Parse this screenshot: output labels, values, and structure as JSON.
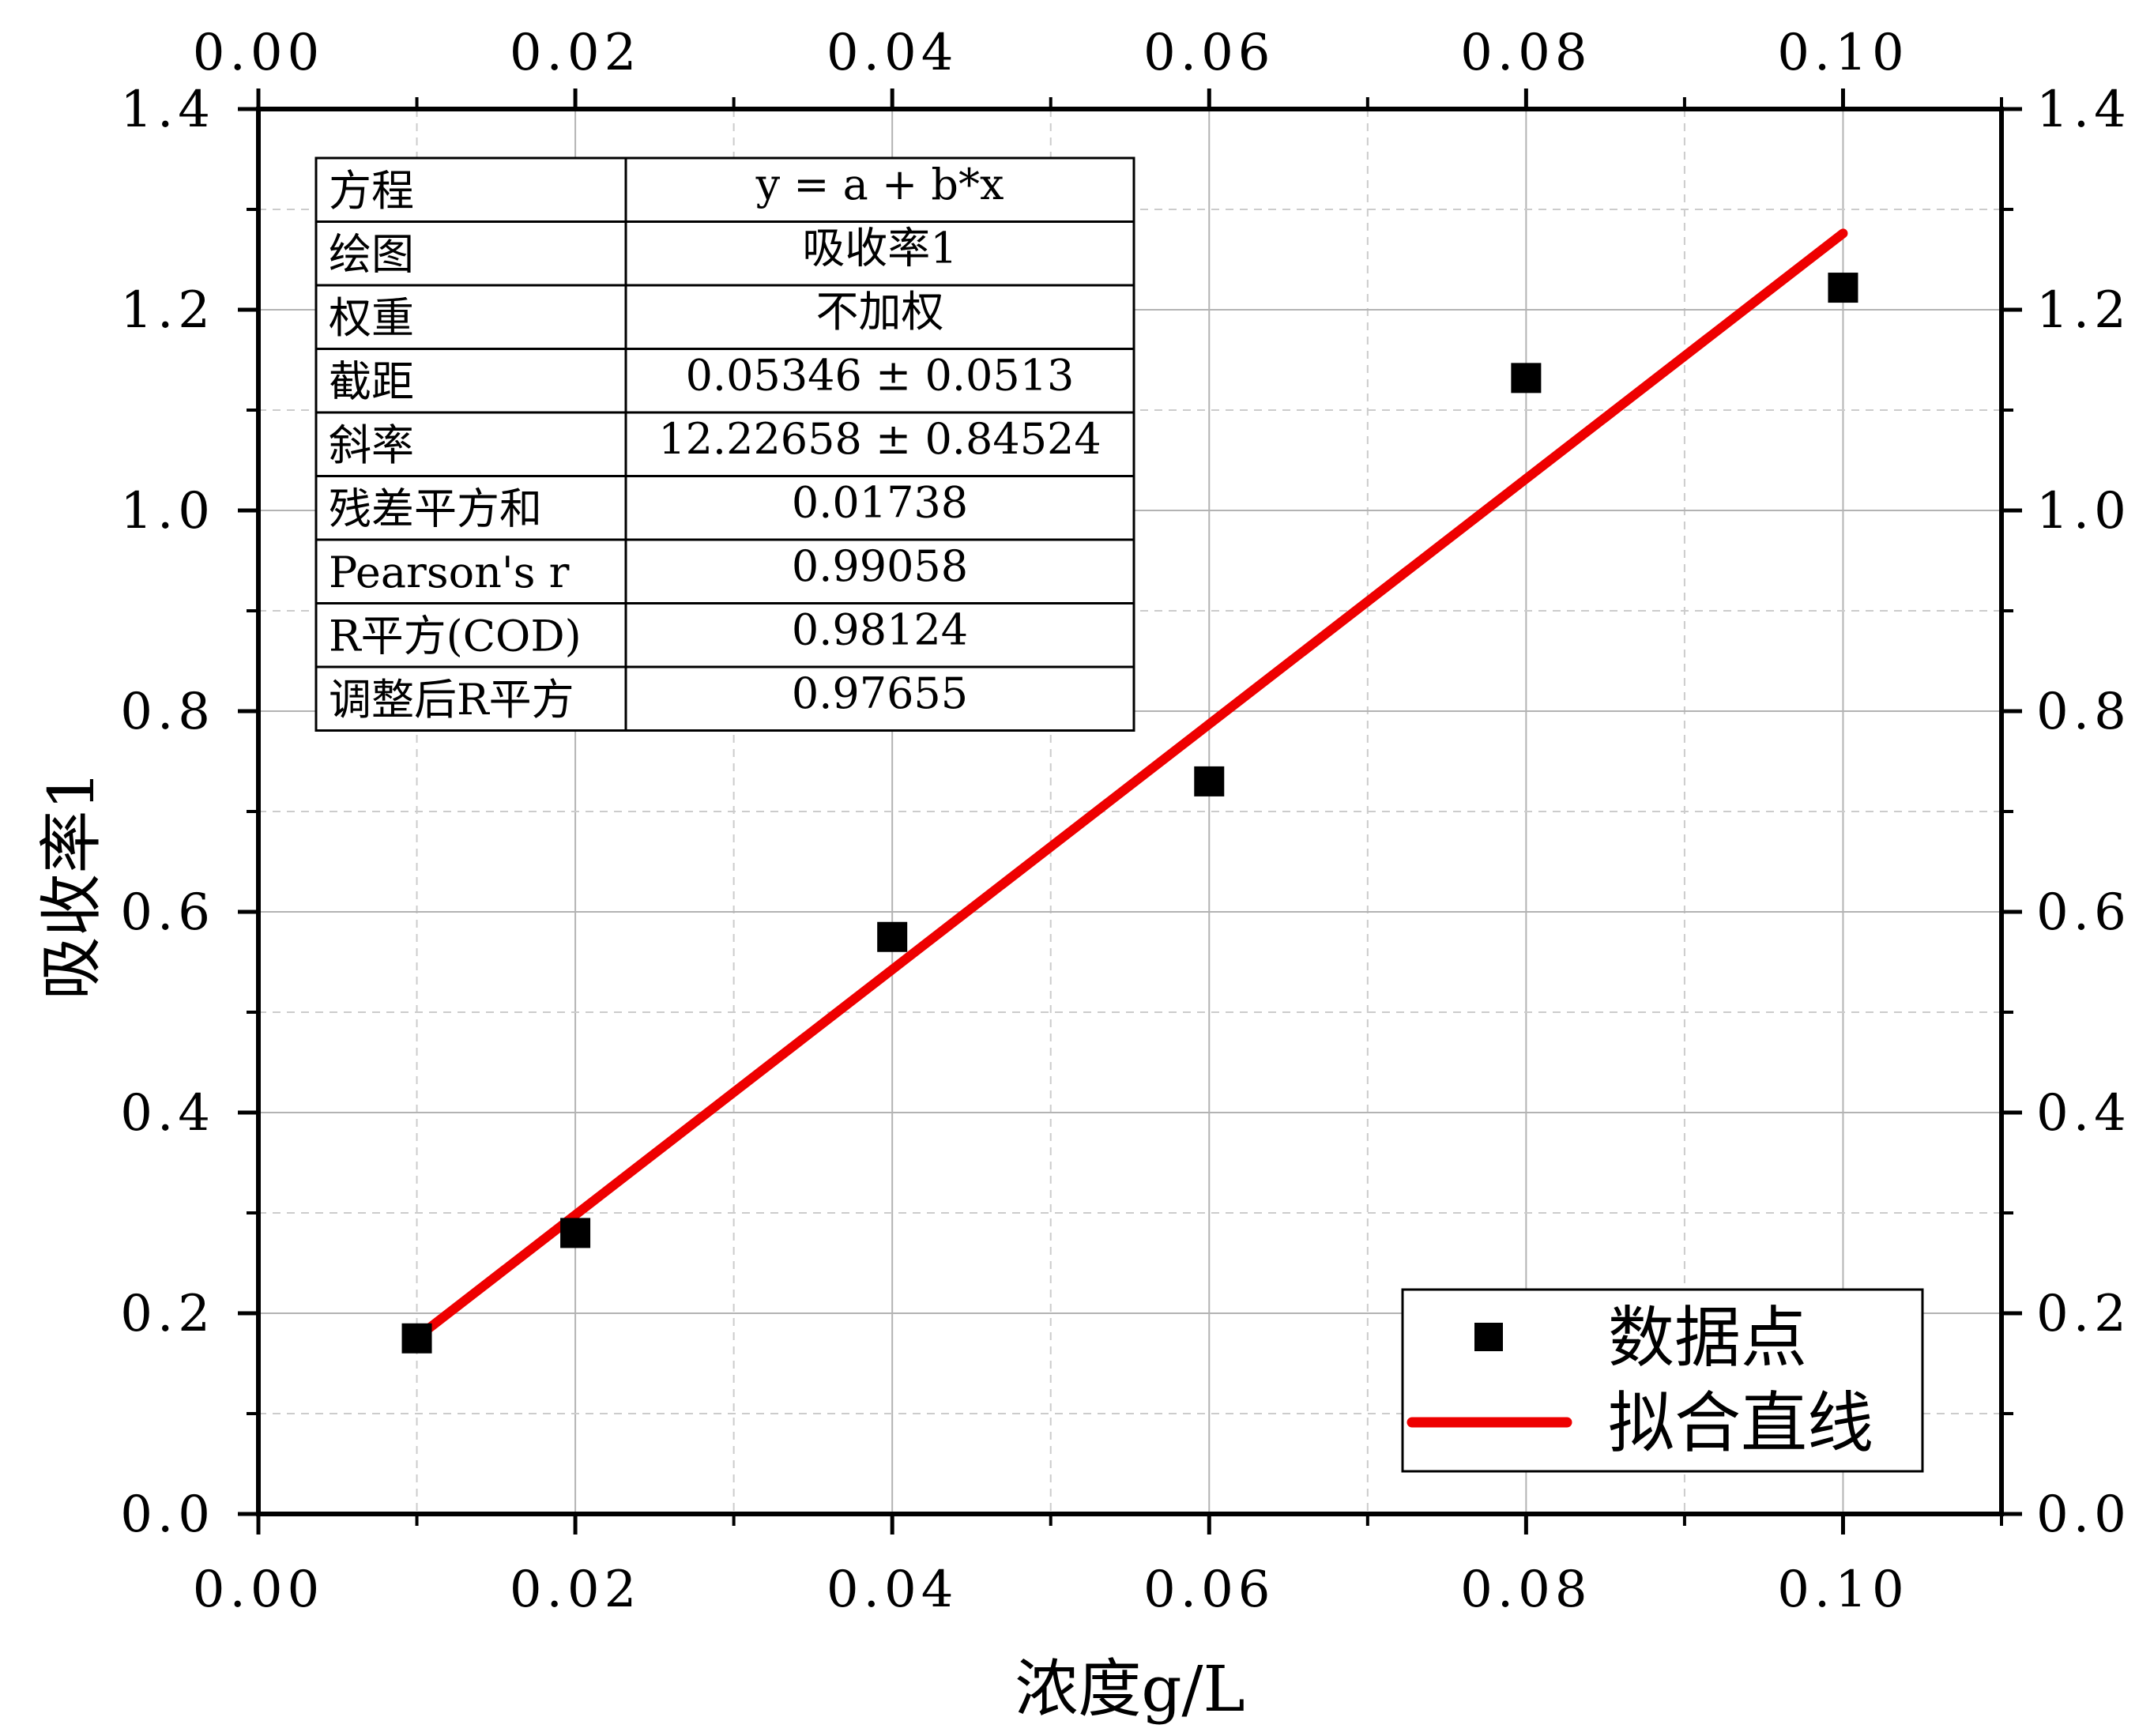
{
  "chart_data": {
    "type": "scatter",
    "xlabel": "浓度g/L",
    "ylabel": "吸收率1",
    "xlim": [
      0,
      0.11
    ],
    "ylim": [
      0,
      1.4
    ],
    "x_ticks": [
      0.0,
      0.02,
      0.04,
      0.06,
      0.08,
      0.1
    ],
    "x_tick_labels": [
      "0.00",
      "0.02",
      "0.04",
      "0.06",
      "0.08",
      "0.10"
    ],
    "y_ticks": [
      0.0,
      0.2,
      0.4,
      0.6,
      0.8,
      1.0,
      1.2,
      1.4
    ],
    "y_tick_labels": [
      "0.0",
      "0.2",
      "0.4",
      "0.6",
      "0.8",
      "1.0",
      "1.2",
      "1.4"
    ],
    "grid": true,
    "mirror_axes": true,
    "legend_position": "bottom-right",
    "series": [
      {
        "name": "数据点",
        "kind": "scatter",
        "marker": "square",
        "color": "#000000",
        "x": [
          0.01,
          0.02,
          0.04,
          0.06,
          0.08,
          0.1
        ],
        "y": [
          0.175,
          0.28,
          0.575,
          0.73,
          1.132,
          1.222
        ]
      },
      {
        "name": "拟合直线",
        "kind": "line",
        "color": "#ee0000",
        "x": [
          0.01,
          0.1
        ],
        "y": [
          0.1757,
          1.2761
        ]
      }
    ],
    "fit_table": {
      "rows": [
        [
          "方程",
          "y = a + b*x"
        ],
        [
          "绘图",
          "吸收率1"
        ],
        [
          "权重",
          "不加权"
        ],
        [
          "截距",
          "0.05346 ± 0.0513"
        ],
        [
          "斜率",
          "12.22658 ± 0.84524"
        ],
        [
          "残差平方和",
          "0.01738"
        ],
        [
          "Pearson's r",
          "0.99058"
        ],
        [
          "R平方(COD)",
          "0.98124"
        ],
        [
          "调整后R平方",
          "0.97655"
        ]
      ]
    }
  }
}
